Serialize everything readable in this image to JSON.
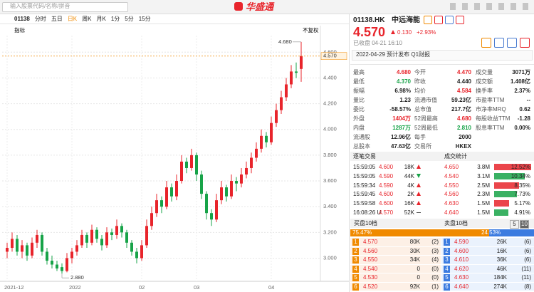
{
  "header": {
    "search_placeholder": "输入股票代码/名称/拼音",
    "logo": "华盛通"
  },
  "tabs": {
    "code": "01138",
    "items": [
      "分时",
      "五日",
      "日K",
      "周K",
      "月K",
      "1分",
      "5分",
      "15分"
    ],
    "active": 2
  },
  "chart_data": {
    "type": "candlestick",
    "indicator": "指标",
    "adjust": "不复权",
    "categories": [
      "2021-12",
      null,
      null,
      null,
      null,
      null,
      null,
      null,
      null,
      null,
      null,
      null,
      null,
      "2022",
      null,
      null,
      null,
      null,
      null,
      null,
      null,
      null,
      null,
      null,
      null,
      null,
      null,
      "02",
      null,
      null,
      null,
      null,
      null,
      null,
      null,
      null,
      null,
      null,
      "03",
      null,
      null,
      null,
      null,
      null,
      null,
      null,
      null,
      null,
      null,
      null,
      null,
      null,
      null,
      "04",
      null,
      null,
      null,
      null,
      null,
      null
    ],
    "candles": [
      [
        3.05,
        3.12,
        3.0,
        3.08
      ],
      [
        3.08,
        3.2,
        3.05,
        3.15
      ],
      [
        3.15,
        3.18,
        3.02,
        3.05
      ],
      [
        3.05,
        3.14,
        3.0,
        3.1
      ],
      [
        3.1,
        3.12,
        2.98,
        3.02
      ],
      [
        3.02,
        3.16,
        3.0,
        3.12
      ],
      [
        3.12,
        3.22,
        3.08,
        3.18
      ],
      [
        3.18,
        3.2,
        3.02,
        3.05
      ],
      [
        3.05,
        3.08,
        2.95,
        2.98
      ],
      [
        2.98,
        3.02,
        2.92,
        2.95
      ],
      [
        2.95,
        2.98,
        2.9,
        2.92
      ],
      [
        2.93,
        2.96,
        2.88,
        2.9
      ],
      [
        2.9,
        3.04,
        2.89,
        3.0
      ],
      [
        3.0,
        3.08,
        2.96,
        3.05
      ],
      [
        3.05,
        3.14,
        3.02,
        3.1
      ],
      [
        3.1,
        3.22,
        3.08,
        3.18
      ],
      [
        3.18,
        3.2,
        3.08,
        3.12
      ],
      [
        3.12,
        3.26,
        3.1,
        3.22
      ],
      [
        3.22,
        3.24,
        3.12,
        3.15
      ],
      [
        3.15,
        3.18,
        3.06,
        3.1
      ],
      [
        3.1,
        3.24,
        3.08,
        3.2
      ],
      [
        3.2,
        3.23,
        3.14,
        3.18
      ],
      [
        3.18,
        3.3,
        3.15,
        3.25
      ],
      [
        3.25,
        3.27,
        3.16,
        3.2
      ],
      [
        3.2,
        3.22,
        3.08,
        3.12
      ],
      [
        3.12,
        3.14,
        3.02,
        3.05
      ],
      [
        3.05,
        3.08,
        2.96,
        3.0
      ],
      [
        3.0,
        3.14,
        2.98,
        3.1
      ],
      [
        3.1,
        3.3,
        3.08,
        3.25
      ],
      [
        3.25,
        3.4,
        3.22,
        3.35
      ],
      [
        3.35,
        3.5,
        3.32,
        3.45
      ],
      [
        3.45,
        3.48,
        3.35,
        3.4
      ],
      [
        3.4,
        3.6,
        3.38,
        3.55
      ],
      [
        3.55,
        3.58,
        3.44,
        3.48
      ],
      [
        3.48,
        3.65,
        3.45,
        3.6
      ],
      [
        3.6,
        3.8,
        3.58,
        3.75
      ],
      [
        3.75,
        3.78,
        3.66,
        3.7
      ],
      [
        3.7,
        3.85,
        3.68,
        3.8
      ],
      [
        3.8,
        3.82,
        3.6,
        3.65
      ],
      [
        3.65,
        3.68,
        3.46,
        3.5
      ],
      [
        3.5,
        3.52,
        3.3,
        3.35
      ],
      [
        3.35,
        3.38,
        3.25,
        3.3
      ],
      [
        3.3,
        3.5,
        3.28,
        3.45
      ],
      [
        3.45,
        3.6,
        3.42,
        3.55
      ],
      [
        3.55,
        3.57,
        3.44,
        3.48
      ],
      [
        3.48,
        3.65,
        3.46,
        3.6
      ],
      [
        3.6,
        3.63,
        3.52,
        3.58
      ],
      [
        3.58,
        3.7,
        3.55,
        3.65
      ],
      [
        3.65,
        3.75,
        3.62,
        3.7
      ],
      [
        3.7,
        3.82,
        3.66,
        3.78
      ],
      [
        3.78,
        3.9,
        3.75,
        3.85
      ],
      [
        3.85,
        4.0,
        3.82,
        3.95
      ],
      [
        3.95,
        3.98,
        3.86,
        3.9
      ],
      [
        3.9,
        4.1,
        3.88,
        4.05
      ],
      [
        4.05,
        4.2,
        4.02,
        4.15
      ],
      [
        4.15,
        4.3,
        4.12,
        4.25
      ],
      [
        4.25,
        4.4,
        4.22,
        4.35
      ],
      [
        4.35,
        4.5,
        4.32,
        4.45
      ],
      [
        4.45,
        4.52,
        4.4,
        4.44
      ],
      [
        4.47,
        4.68,
        4.37,
        4.57
      ]
    ],
    "ylim": [
      2.82,
      4.74
    ],
    "yticks": [
      {
        "value": 3.0,
        "label": "3.000"
      },
      {
        "value": 3.2,
        "label": "3.200"
      },
      {
        "value": 3.4,
        "label": "3.400"
      },
      {
        "value": 3.6,
        "label": "3.600"
      },
      {
        "value": 3.8,
        "label": "3.800"
      },
      {
        "value": 4.0,
        "label": "4.000"
      },
      {
        "value": 4.2,
        "label": "4.200"
      },
      {
        "value": 4.4,
        "label": "4.400"
      },
      {
        "value": 4.6,
        "label": "4.600"
      }
    ],
    "up_color": "#e8242b",
    "down_color": "#17a348",
    "grid": true,
    "high_label": "4.680",
    "low_label": "2.880",
    "last": {
      "value": 4.57,
      "label": "4.570"
    }
  },
  "quote": {
    "symbol": "01138.HK",
    "name": "中远海能",
    "price": "4.570",
    "change": "0.130",
    "change_pct": "+2.93%",
    "status": "已收盘 04-21 16:10",
    "notice": "2022-04-29 预计发布 Q1财报"
  },
  "stats": [
    [
      {
        "label": "最高",
        "value": "4.680",
        "tone": "up"
      },
      {
        "label": "今开",
        "value": "4.470",
        "tone": "up"
      },
      {
        "label": "成交量",
        "value": "3071万"
      }
    ],
    [
      {
        "label": "最低",
        "value": "4.370",
        "tone": "down"
      },
      {
        "label": "昨收",
        "value": "4.440"
      },
      {
        "label": "成交额",
        "value": "1.408亿"
      }
    ],
    [
      {
        "label": "振幅",
        "value": "6.98%"
      },
      {
        "label": "均价",
        "value": "4.584",
        "tone": "up"
      },
      {
        "label": "换手率",
        "value": "2.37%"
      }
    ],
    [
      {
        "label": "量比",
        "value": "1.23"
      },
      {
        "label": "流通市值",
        "value": "59.23亿"
      },
      {
        "label": "市盈率TTM",
        "value": "--"
      }
    ],
    [
      {
        "label": "委比",
        "value": "-58.57%"
      },
      {
        "label": "总市值",
        "value": "217.7亿"
      },
      {
        "label": "市净率MRQ",
        "value": "0.62"
      }
    ],
    [
      {
        "label": "外盘",
        "value": "1404万",
        "tone": "up"
      },
      {
        "label": "52周最高",
        "value": "4.680",
        "tone": "up"
      },
      {
        "label": "每股收益TTM",
        "value": "-1.28"
      }
    ],
    [
      {
        "label": "内盘",
        "value": "1287万",
        "tone": "down"
      },
      {
        "label": "52周最低",
        "value": "2.810",
        "tone": "down"
      },
      {
        "label": "股息率TTM",
        "value": "0.00%"
      }
    ],
    [
      {
        "label": "流通股",
        "value": "12.96亿"
      },
      {
        "label": "每手",
        "value": "2000"
      }
    ],
    [
      {
        "label": "总股本",
        "value": "47.63亿"
      },
      {
        "label": "交易所",
        "value": "HKEX"
      }
    ]
  ],
  "trades": {
    "title": "逐笔交易",
    "rows": [
      [
        "15:59:05",
        "4.600",
        "18K",
        "up"
      ],
      [
        "15:59:05",
        "4.590",
        "44K",
        "down"
      ],
      [
        "15:59:34",
        "4.590",
        "4K",
        "up"
      ],
      [
        "15:59:45",
        "4.600",
        "2K",
        "up"
      ],
      [
        "15:59:58",
        "4.600",
        "16K",
        "up"
      ],
      [
        "16:08:26 U",
        "4.570",
        "52K",
        "neutral"
      ]
    ]
  },
  "volume_stats": {
    "title": "成交统计",
    "rows": [
      {
        "price": "4.650",
        "volume": "3.8M",
        "pct": 12.52,
        "pct_label": "12.52%"
      },
      {
        "price": "4.540",
        "volume": "3.1M",
        "pct": 10.34,
        "pct_label": "10.34%"
      },
      {
        "price": "4.550",
        "volume": "2.5M",
        "pct": 8.35,
        "pct_label": "8.35%"
      },
      {
        "price": "4.560",
        "volume": "2.3M",
        "pct": 7.73,
        "pct_label": "7.73%"
      },
      {
        "price": "4.630",
        "volume": "1.5M",
        "pct": 5.17,
        "pct_label": "5.17%"
      },
      {
        "price": "4.640",
        "volume": "1.5M",
        "pct": 4.91,
        "pct_label": "4.91%"
      }
    ]
  },
  "orderbook": {
    "bid_title": "买盘10档",
    "ask_title": "卖盘10档",
    "depth_options": [
      "5",
      "10"
    ],
    "bid_pct": 75.47,
    "bid_pct_label": "75.47%",
    "ask_pct": 24.53,
    "ask_pct_label": "24.53%",
    "bids": [
      [
        "1",
        "4.570",
        "80K",
        "(2)"
      ],
      [
        "2",
        "4.560",
        "30K",
        "(3)"
      ],
      [
        "3",
        "4.550",
        "34K",
        "(4)"
      ],
      [
        "4",
        "4.540",
        "0",
        "(0)"
      ],
      [
        "5",
        "4.530",
        "0",
        "(0)"
      ],
      [
        "6",
        "4.520",
        "92K",
        "(1)"
      ]
    ],
    "asks": [
      [
        "1",
        "4.590",
        "26K",
        "(6)"
      ],
      [
        "2",
        "4.600",
        "16K",
        "(6)"
      ],
      [
        "3",
        "4.610",
        "36K",
        "(6)"
      ],
      [
        "4",
        "4.620",
        "46K",
        "(11)"
      ],
      [
        "5",
        "4.630",
        "184K",
        "(11)"
      ],
      [
        "6",
        "4.640",
        "274K",
        "(8)"
      ]
    ]
  }
}
